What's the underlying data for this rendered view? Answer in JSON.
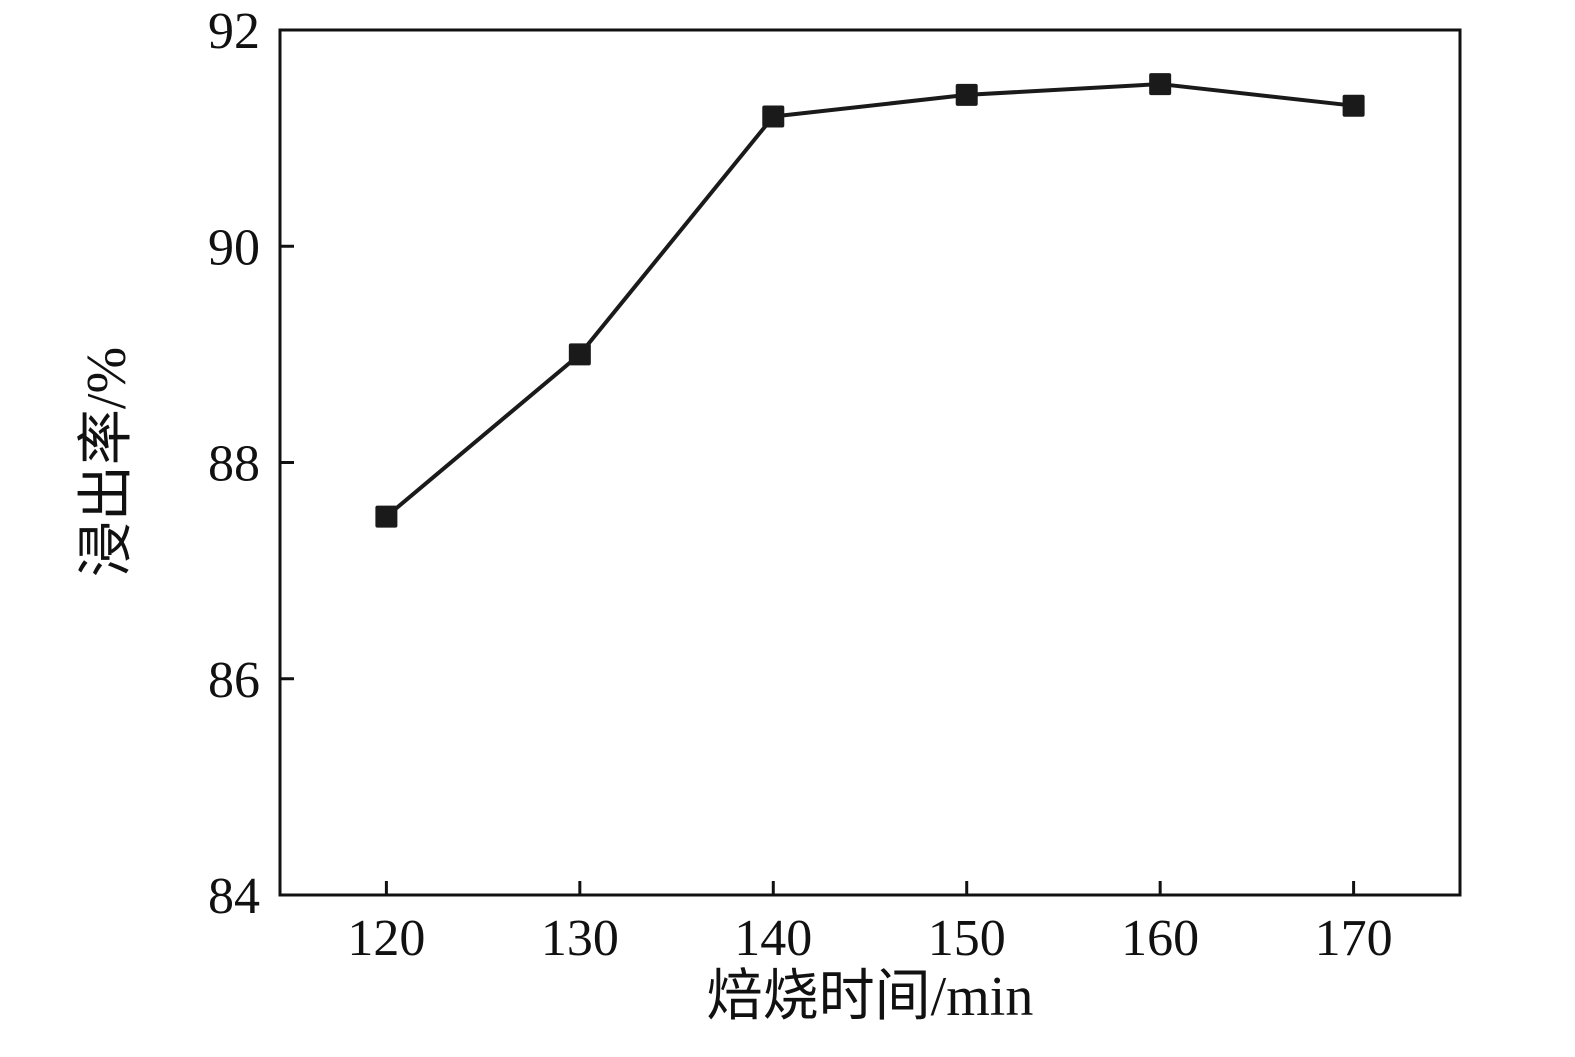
{
  "chart_data": {
    "type": "line",
    "title": "",
    "xlabel": "焙烧时间/min",
    "ylabel": "浸出率/%",
    "x": [
      120,
      130,
      140,
      150,
      160,
      170
    ],
    "values": [
      87.5,
      89.0,
      91.2,
      91.4,
      91.5,
      91.3
    ],
    "series": [
      {
        "name": "浸出率",
        "values": [
          87.5,
          89.0,
          91.2,
          91.4,
          91.5,
          91.3
        ]
      }
    ],
    "x_ticks": [
      "120",
      "130",
      "140",
      "150",
      "160",
      "170"
    ],
    "x_tick_values": [
      120,
      130,
      140,
      150,
      160,
      170
    ],
    "y_ticks": [
      "84",
      "86",
      "88",
      "90",
      "92"
    ],
    "y_tick_values": [
      84,
      86,
      88,
      90,
      92
    ],
    "xlim": [
      114.5,
      175.5
    ],
    "ylim": [
      84,
      92
    ],
    "grid": false,
    "legend": "none",
    "marker": "square",
    "line_color": "#1a1a1a",
    "marker_color": "#1a1a1a",
    "axis_color": "#111111"
  }
}
